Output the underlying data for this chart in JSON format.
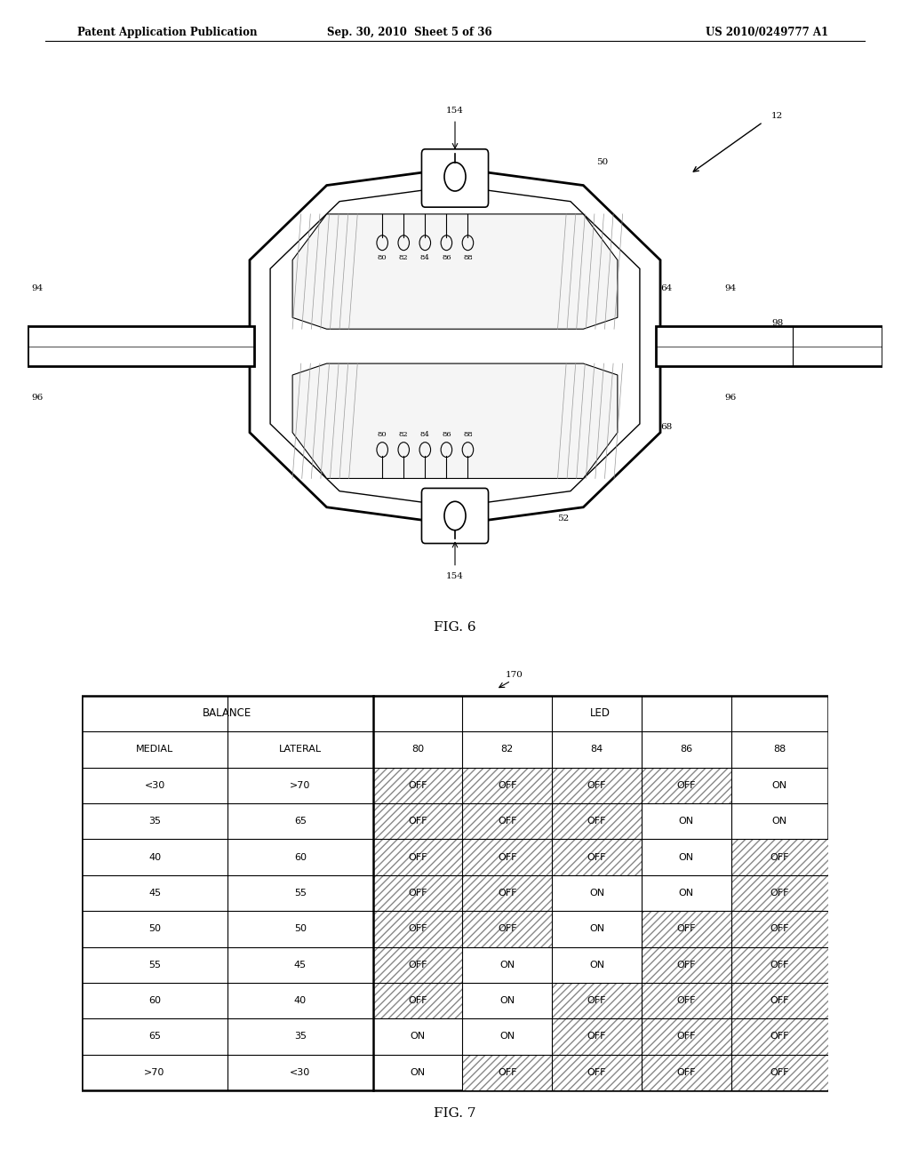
{
  "header_left": "Patent Application Publication",
  "header_center": "Sep. 30, 2010  Sheet 5 of 36",
  "header_right": "US 2010/0249777 A1",
  "fig6_label": "FIG. 6",
  "fig7_label": "FIG. 7",
  "table_data": [
    [
      "<30",
      ">70",
      "OFF",
      "OFF",
      "OFF",
      "OFF",
      "ON"
    ],
    [
      "35",
      "65",
      "OFF",
      "OFF",
      "OFF",
      "ON",
      "ON"
    ],
    [
      "40",
      "60",
      "OFF",
      "OFF",
      "OFF",
      "ON",
      "OFF"
    ],
    [
      "45",
      "55",
      "OFF",
      "OFF",
      "ON",
      "ON",
      "OFF"
    ],
    [
      "50",
      "50",
      "OFF",
      "OFF",
      "ON",
      "OFF",
      "OFF"
    ],
    [
      "55",
      "45",
      "OFF",
      "ON",
      "ON",
      "OFF",
      "OFF"
    ],
    [
      "60",
      "40",
      "OFF",
      "ON",
      "OFF",
      "OFF",
      "OFF"
    ],
    [
      "65",
      "35",
      "ON",
      "ON",
      "OFF",
      "OFF",
      "OFF"
    ],
    [
      ">70",
      "<30",
      "ON",
      "OFF",
      "OFF",
      "OFF",
      "OFF"
    ]
  ],
  "bg_color": "#ffffff",
  "line_color": "#000000"
}
